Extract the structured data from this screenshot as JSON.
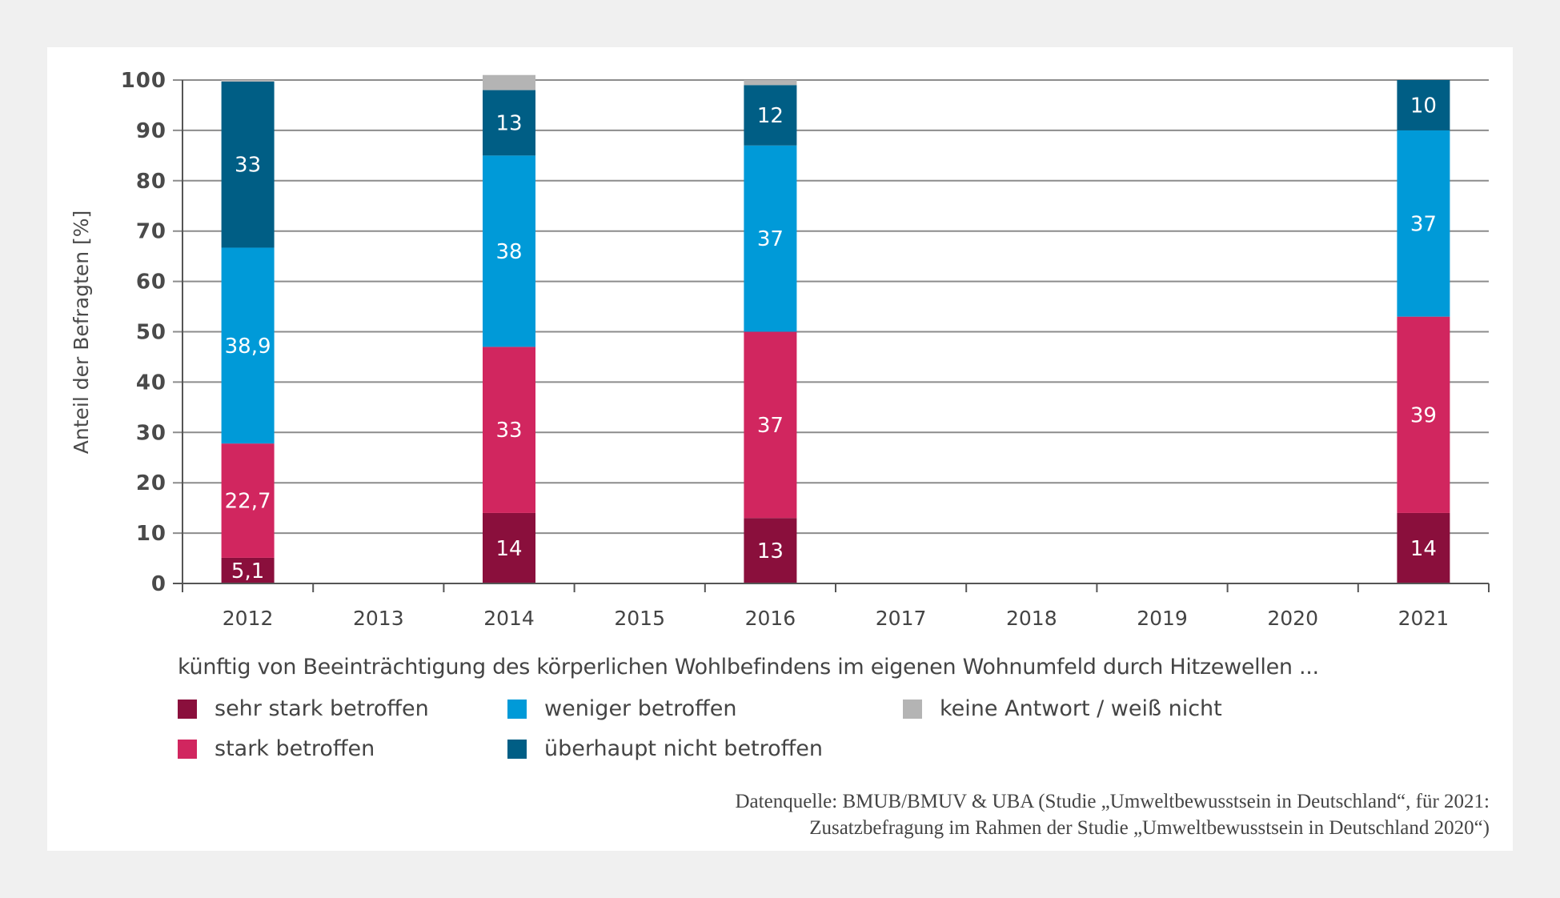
{
  "chart_data": {
    "type": "bar",
    "stacked": true,
    "title": "",
    "xlabel": "künftig von Beeinträchtigung des körperlichen Wohlbefindens im eigenen Wohnumfeld durch Hitzewellen ...",
    "ylabel": "Anteil der Befragten [%]",
    "ylim": [
      0,
      100
    ],
    "yticks": [
      "0",
      "10",
      "20",
      "30",
      "40",
      "50",
      "60",
      "70",
      "80",
      "90",
      "100"
    ],
    "ytick_values": [
      0,
      10,
      20,
      30,
      40,
      50,
      60,
      70,
      80,
      90,
      100
    ],
    "categories": [
      "2012",
      "2013",
      "2014",
      "2015",
      "2016",
      "2017",
      "2018",
      "2019",
      "2020",
      "2021"
    ],
    "grid": true,
    "legend_position": "bottom",
    "series": [
      {
        "name": "sehr stark betroffen",
        "color": "#8a0f3c",
        "values": [
          5.1,
          null,
          14,
          null,
          13,
          null,
          null,
          null,
          null,
          14
        ],
        "labels": [
          "5,1",
          "",
          "14",
          "",
          "13",
          "",
          "",
          "",
          "",
          "14"
        ]
      },
      {
        "name": "stark betroffen",
        "color": "#d1265f",
        "values": [
          22.7,
          null,
          33,
          null,
          37,
          null,
          null,
          null,
          null,
          39
        ],
        "labels": [
          "22,7",
          "",
          "33",
          "",
          "37",
          "",
          "",
          "",
          "",
          "39"
        ]
      },
      {
        "name": "weniger betroffen",
        "color": "#009ad8",
        "values": [
          38.9,
          null,
          38,
          null,
          37,
          null,
          null,
          null,
          null,
          37
        ],
        "labels": [
          "38,9",
          "",
          "38",
          "",
          "37",
          "",
          "",
          "",
          "",
          "37"
        ]
      },
      {
        "name": "überhaupt nicht betroffen",
        "color": "#005e85",
        "values": [
          33,
          null,
          13,
          null,
          12,
          null,
          null,
          null,
          null,
          10
        ],
        "labels": [
          "33",
          "",
          "13",
          "",
          "12",
          "",
          "",
          "",
          "",
          "10"
        ]
      },
      {
        "name": "keine Antwort / weiß nicht",
        "color": "#b4b4b4",
        "values": [
          0.3,
          null,
          3,
          null,
          1,
          null,
          null,
          null,
          null,
          0
        ],
        "labels": [
          "",
          "",
          "",
          "",
          "",
          "",
          "",
          "",
          "",
          ""
        ]
      }
    ]
  },
  "legend": {
    "items": [
      {
        "label": "sehr stark betroffen",
        "color": "#8a0f3c"
      },
      {
        "label": "weniger betroffen",
        "color": "#009ad8"
      },
      {
        "label": "keine Antwort / weiß nicht",
        "color": "#b4b4b4"
      },
      {
        "label": "stark betroffen",
        "color": "#d1265f"
      },
      {
        "label": "überhaupt nicht betroffen",
        "color": "#005e85"
      }
    ]
  },
  "source": {
    "line1": "Datenquelle: BMUB/BMUV & UBA (Studie „Umweltbewusstsein in Deutschland“, für 2021:",
    "line2": "Zusatzbefragung im Rahmen der Studie „Umweltbewusstsein in Deutschland 2020“)"
  },
  "colors": {
    "background": "#f0f0f0",
    "panel": "#ffffff",
    "grid": "#8c8c8c",
    "axis": "#555555",
    "text": "#444444"
  }
}
